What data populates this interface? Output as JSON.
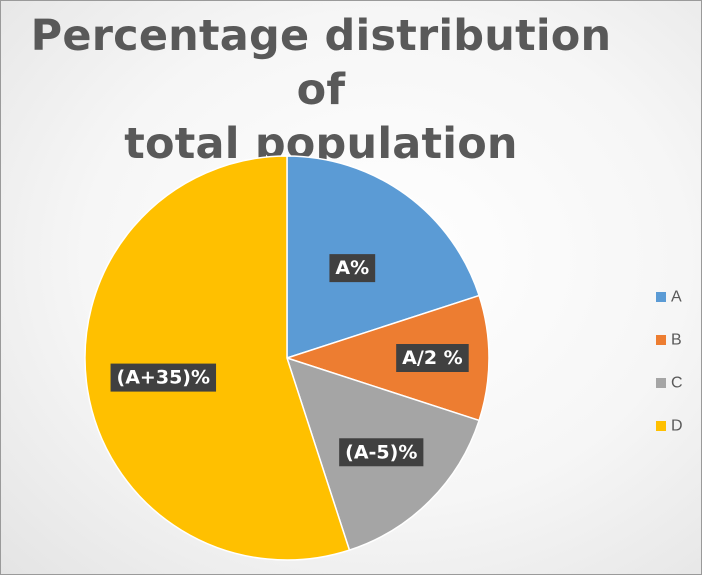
{
  "chart_data": {
    "type": "pie",
    "title": "Percentage distribution of total population",
    "categories": [
      "A",
      "B",
      "C",
      "D"
    ],
    "values": [
      20,
      10,
      15,
      55
    ],
    "data_labels": [
      "A%",
      "A/2 %",
      "(A-5)%",
      "(A+35)%"
    ],
    "colors": [
      "#5b9bd5",
      "#ed7d31",
      "#a5a5a5",
      "#ffc000"
    ],
    "legend_position": "right",
    "start_angle": "12 o'clock, clockwise"
  }
}
